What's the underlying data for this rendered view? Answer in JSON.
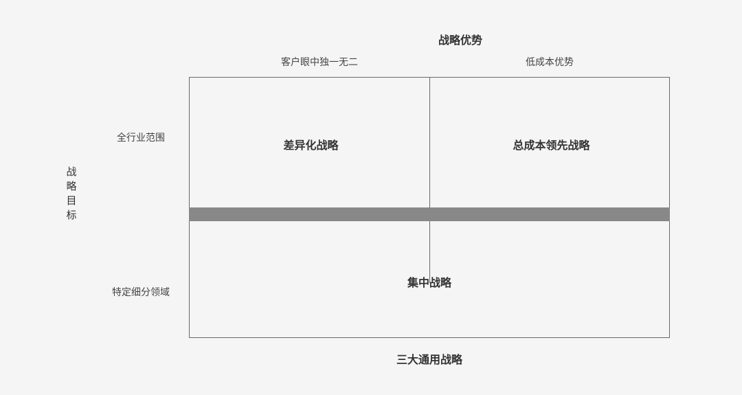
{
  "diagram": {
    "type": "matrix",
    "background_color": "#f5f5f5",
    "border_color": "#666666",
    "band_color": "#888888",
    "text_color": "#333333",
    "subtext_color": "#444444",
    "top_title": "战略优势",
    "col_headers": [
      "客户眼中独一无二",
      "低成本优势"
    ],
    "left_title": "战略目标",
    "row_labels": [
      "全行业范围",
      "特定细分领域"
    ],
    "cells": {
      "top_left": "差异化战略",
      "top_right": "总成本领先战略",
      "bottom": "集中战略"
    },
    "bottom_title": "三大通用战略",
    "fontsize_title": 16,
    "fontsize_label": 14,
    "fontsize_cell": 16
  }
}
